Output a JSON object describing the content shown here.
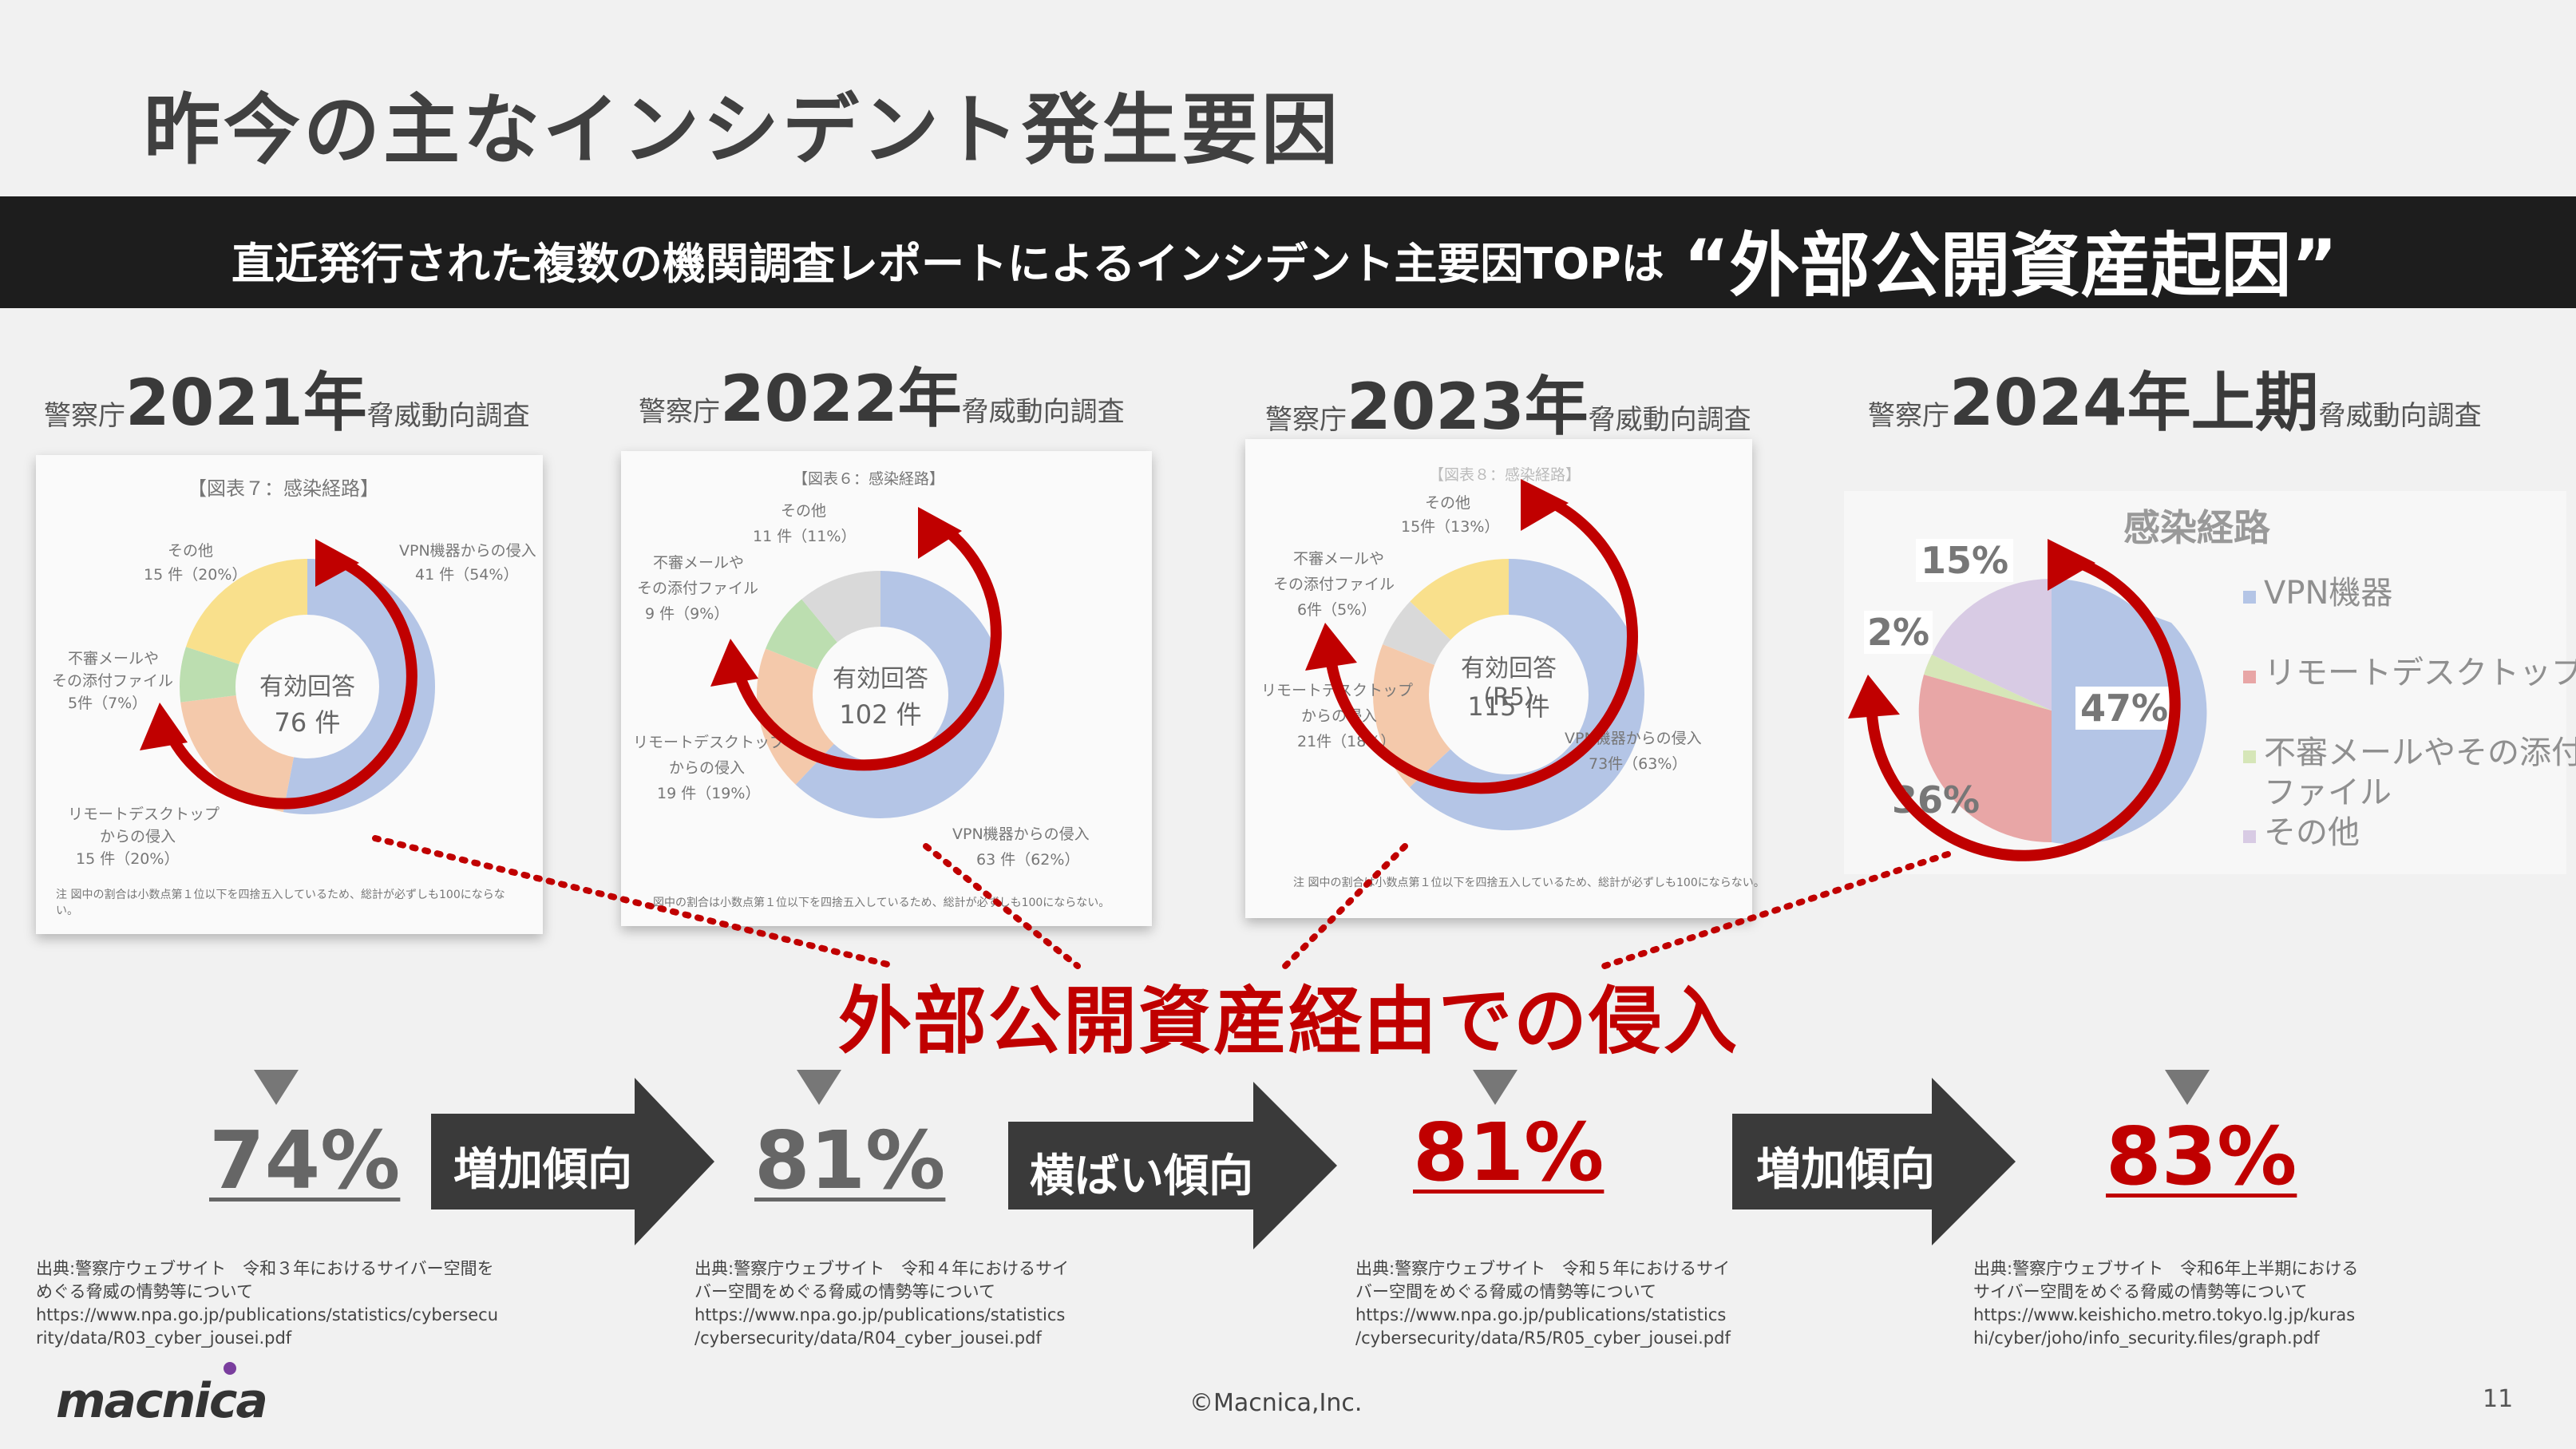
{
  "title": "昨今の主なインシデント発生要因",
  "banner": {
    "text": "直近発行された複数の機関調査レポートによるインシデント主要因TOPは",
    "highlight": "“外部公開資産起因”"
  },
  "surveys": [
    {
      "prefix": "警察庁",
      "year": "2021年",
      "suffix": "脅威動向調査"
    },
    {
      "prefix": "警察庁",
      "year": "2022年",
      "suffix": "脅威動向調査"
    },
    {
      "prefix": "警察庁",
      "year": "2023年",
      "suffix": "脅威動向調査"
    },
    {
      "prefix": "警察庁",
      "year": "2024年上期",
      "suffix": "脅威動向調査"
    }
  ],
  "charts": {
    "c2021": {
      "caption": "【図表７：感染経路】",
      "center_label": "有効回答",
      "center_value": "76 件",
      "labels": [
        "VPN機器からの侵入",
        "41 件（54%）",
        "その他",
        "15 件（20%）",
        "不審メールや",
        "その添付ファイル",
        "5件（7%）",
        "リモートデスクトップ",
        "からの侵入",
        "15 件（20%）"
      ],
      "note": "注 図中の割合は小数点第１位以下を四捨五入しているため、総計が必ずしも100にならない。"
    },
    "c2022": {
      "caption": "【図表６：感染経路】",
      "center_label": "有効回答",
      "center_value": "102 件",
      "labels": [
        "その他",
        "11 件（11%）",
        "不審メールや",
        "その添付ファイル",
        "9 件（9%）",
        "リモートデスクトップ",
        "からの侵入",
        "19 件（19%）",
        "VPN機器からの侵入",
        "63 件（62%）"
      ],
      "note": "図中の割合は小数点第１位以下を四捨五入しているため、総計が必ずしも100にならない。"
    },
    "c2023": {
      "caption": "【図表８：感染経路】",
      "center_label": "有効回答(R5)",
      "center_value": "115 件",
      "labels": [
        "その他",
        "15件（13%）",
        "不審メールや",
        "その添付ファイル",
        "6件（5%）",
        "リモートデスクトップ",
        "からの侵入",
        "21件（18%）",
        "VPN機器からの侵入",
        "73件（63%）"
      ],
      "note": "注 図中の割合は小数点第１位以下を四捨五入しているため、総計が必ずしも100にならない。"
    },
    "c2024": {
      "title": "感染経路",
      "slices": [
        "47%",
        "36%",
        "2%",
        "15%"
      ],
      "legend": [
        "VPN機器",
        "リモートデスクトップ",
        "不審メールやその添付",
        "ファイル",
        "その他"
      ]
    }
  },
  "colors": {
    "vpn": "#b4c5e6",
    "rdp": "#f4c9ab",
    "mail": "#bcdeb0",
    "other": "#f9e08c",
    "other_gray": "#d9d9d9",
    "rdp_2024": "#e8a6a6",
    "mail_2024": "#d6e6b8",
    "other_2024": "#d8cbe4",
    "accent_red": "#c00000"
  },
  "callout": "外部公開資産経由での侵入",
  "percentages": [
    "74%",
    "81%",
    "81%",
    "83%"
  ],
  "trends": [
    "増加傾向",
    "横ばい傾向",
    "増加傾向"
  ],
  "sources": [
    "出典:警察庁ウェブサイト　令和３年におけるサイバー空間を\nめぐる脅威の情勢等について\nhttps://www.npa.go.jp/publications/statistics/cybersecu\nrity/data/R03_cyber_jousei.pdf",
    "出典:警察庁ウェブサイト　令和４年におけるサイ\nバー空間をめぐる脅威の情勢等について\nhttps://www.npa.go.jp/publications/statistics\n/cybersecurity/data/R04_cyber_jousei.pdf",
    "出典:警察庁ウェブサイト　令和５年におけるサイ\nバー空間をめぐる脅威の情勢等について\nhttps://www.npa.go.jp/publications/statistics\n/cybersecurity/data/R5/R05_cyber_jousei.pdf",
    "出典:警察庁ウェブサイト　令和6年上半期における\nサイバー空間をめぐる脅威の情勢等について\nhttps://www.keishicho.metro.tokyo.lg.jp/kuras\nhi/cyber/joho/info_security.files/graph.pdf"
  ],
  "footer": {
    "logo": "macnica",
    "copyright": "©Macnica,Inc.",
    "page": "11"
  }
}
